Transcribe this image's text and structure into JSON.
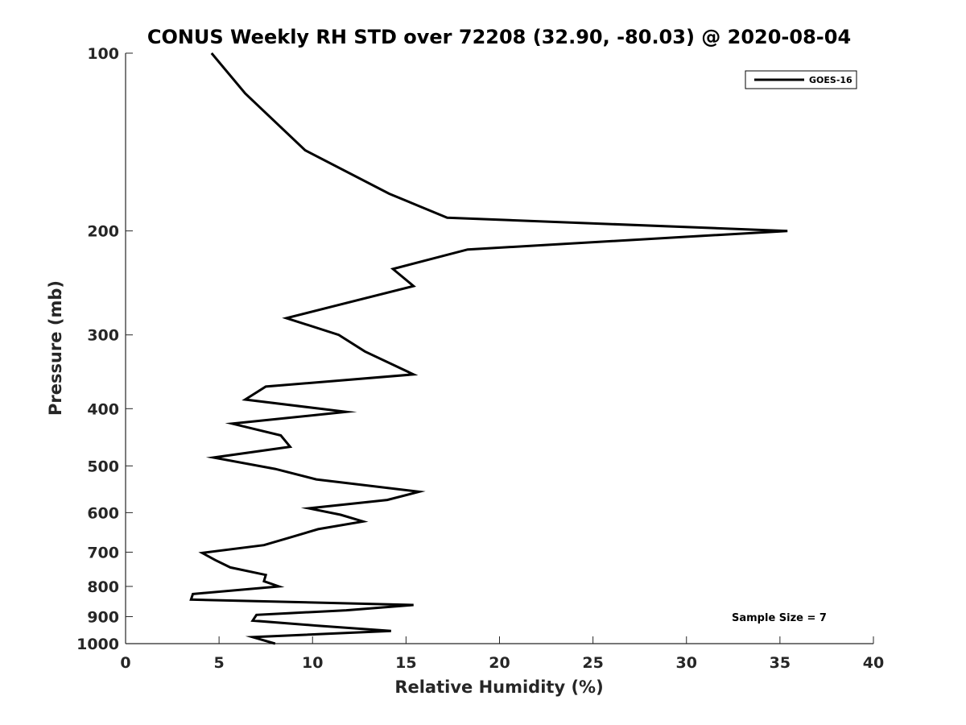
{
  "chart_data": {
    "type": "line",
    "title": "CONUS Weekly RH STD over 72208 (32.90, -80.03) @ 2020-08-04",
    "xlabel": "Relative Humidity (%)",
    "ylabel": "Pressure (mb)",
    "xlim": [
      0,
      40
    ],
    "ylim": [
      100,
      1000
    ],
    "yscale": "log",
    "y_reversed": true,
    "x_ticks": [
      0,
      5,
      10,
      15,
      20,
      25,
      30,
      35,
      40
    ],
    "y_ticks": [
      100,
      200,
      300,
      400,
      500,
      600,
      700,
      800,
      900,
      1000
    ],
    "grid": false,
    "legend_position": "top-right",
    "annotation": "Sample Size = 7",
    "series": [
      {
        "name": "GOES-16",
        "color": "#000000",
        "points": [
          [
            4.6,
            100
          ],
          [
            6.4,
            117
          ],
          [
            9.6,
            146
          ],
          [
            14.1,
            173
          ],
          [
            17.2,
            190
          ],
          [
            35.4,
            200
          ],
          [
            18.3,
            215
          ],
          [
            14.3,
            232
          ],
          [
            15.4,
            248
          ],
          [
            8.6,
            281
          ],
          [
            11.4,
            300
          ],
          [
            12.8,
            320
          ],
          [
            15.4,
            350
          ],
          [
            7.5,
            367
          ],
          [
            6.4,
            386
          ],
          [
            11.8,
            405
          ],
          [
            5.7,
            424
          ],
          [
            8.3,
            444
          ],
          [
            8.8,
            464
          ],
          [
            4.7,
            484
          ],
          [
            8.0,
            506
          ],
          [
            10.2,
            527
          ],
          [
            15.7,
            553
          ],
          [
            14.0,
            571
          ],
          [
            9.8,
            590
          ],
          [
            11.5,
            605
          ],
          [
            12.7,
            621
          ],
          [
            10.3,
            640
          ],
          [
            8.8,
            661
          ],
          [
            7.4,
            681
          ],
          [
            4.1,
            702
          ],
          [
            4.8,
            722
          ],
          [
            5.6,
            743
          ],
          [
            7.5,
            765
          ],
          [
            7.4,
            784
          ],
          [
            8.2,
            800
          ],
          [
            3.6,
            824
          ],
          [
            3.5,
            842
          ],
          [
            15.4,
            860
          ],
          [
            11.8,
            878
          ],
          [
            7.0,
            894
          ],
          [
            6.8,
            914
          ],
          [
            10.2,
            932
          ],
          [
            14.2,
            952
          ],
          [
            6.8,
            975
          ],
          [
            8.0,
            1000
          ]
        ]
      }
    ]
  }
}
